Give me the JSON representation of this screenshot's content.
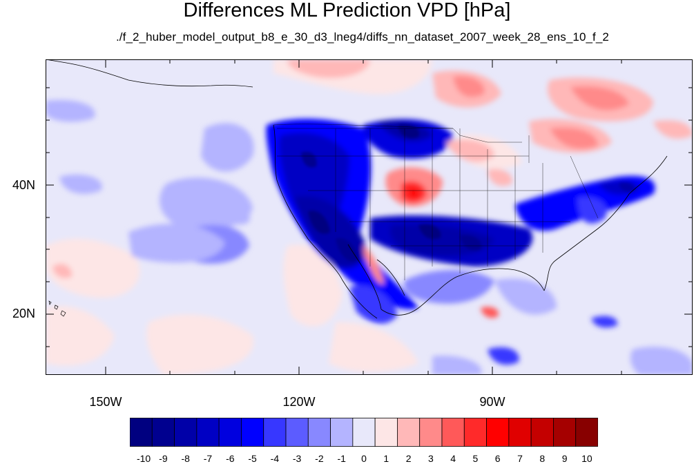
{
  "title": "Differences ML Prediction VPD [hPa]",
  "subtitle": "./f_2_huber_model_output_b8_e_30_d3_lneg4/diffs_nn_dataset_2007_week_28_ens_10_f_2",
  "map": {
    "lat_labels": [
      "40N",
      "20N"
    ],
    "lon_labels": [
      "150W",
      "120W",
      "90W"
    ]
  },
  "colorbar": {
    "labels": [
      "-10",
      "-9",
      "-8",
      "-7",
      "-6",
      "-5",
      "-4",
      "-3",
      "-2",
      "-1",
      "0",
      "1",
      "2",
      "3",
      "4",
      "5",
      "6",
      "7",
      "8",
      "9",
      "10"
    ],
    "colors": [
      "#000080",
      "#00008f",
      "#0000a8",
      "#0000c4",
      "#0000df",
      "#0000ff",
      "#3737ff",
      "#5c5cff",
      "#8888ff",
      "#b4b4ff",
      "#e8e8fa",
      "#fde6e6",
      "#ffb8b8",
      "#ff8a8a",
      "#ff5959",
      "#ff2a2a",
      "#ff0000",
      "#e00000",
      "#c40000",
      "#a50000",
      "#880000"
    ]
  }
}
